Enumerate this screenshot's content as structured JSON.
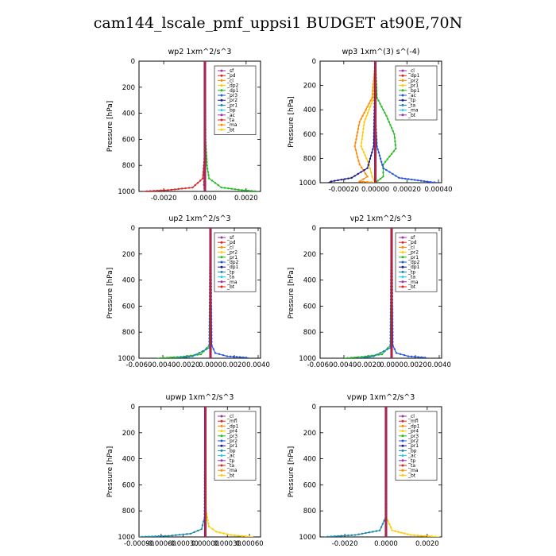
{
  "page_title": "cam144_lscale_pmf_uppsi1  BUDGET at90E,70N",
  "ylabel": "Pressure [hPa]",
  "colors": {
    "purple": "#9933aa",
    "red": "#dd2222",
    "orange": "#ff8800",
    "yellow": "#ffcc00",
    "green": "#22bb22",
    "blue": "#2255dd",
    "navy": "#1a1a88",
    "cyan": "#22ccee",
    "teal": "#1a88aa"
  },
  "chart_data": [
    {
      "type": "line",
      "title": "wp2  1xm^2/s^3",
      "xlim": [
        -0.0032,
        0.0027
      ],
      "ylim": [
        0,
        1000
      ],
      "xticks": [
        -0.002,
        0.0,
        0.002
      ],
      "xtick_labels": [
        "-0.0020",
        "0.0000",
        "0.0020"
      ],
      "yticks": [
        0,
        200,
        400,
        600,
        800,
        1000
      ],
      "legend": [
        "_sf",
        "_pd",
        "_cl",
        "_dp2",
        "_dp1",
        "_pr3",
        "_pr2",
        "_pr1",
        "_bp",
        "_ac",
        "_ta",
        "_ma",
        "_bt"
      ],
      "series": [
        {
          "name": "_cl",
          "color": "red",
          "points": [
            [
              0,
              0
            ],
            [
              0,
              700
            ],
            [
              -0.0001,
              900
            ],
            [
              -0.0006,
              970
            ],
            [
              -0.0018,
              990
            ],
            [
              -0.003,
              1000
            ]
          ]
        },
        {
          "name": "_bp",
          "color": "green",
          "points": [
            [
              0,
              0
            ],
            [
              3e-05,
              600
            ],
            [
              0.0001,
              800
            ],
            [
              0.0002,
              900
            ],
            [
              0.0008,
              970
            ],
            [
              0.0018,
              990
            ],
            [
              0.0026,
              1000
            ]
          ]
        },
        {
          "name": "_pd",
          "color": "purple",
          "points": [
            [
              0,
              0
            ],
            [
              0,
              800
            ],
            [
              -5e-05,
              950
            ],
            [
              0,
              1000
            ]
          ]
        }
      ]
    },
    {
      "type": "line",
      "title": "wp3  1xm^(3) s^(-4)",
      "xlim": [
        -0.00035,
        0.00042
      ],
      "ylim": [
        0,
        1000
      ],
      "xticks": [
        -0.0002,
        0.0,
        0.0002,
        0.0004
      ],
      "xtick_labels": [
        "-0.00020",
        "0.00000",
        "0.00020",
        "0.00040"
      ],
      "yticks": [
        0,
        200,
        400,
        600,
        800,
        1000
      ],
      "legend": [
        "_cl",
        "_dp1",
        "_pr2",
        "_pr1",
        "_bp1",
        "_ac",
        "_tp",
        "_ta",
        "_ma",
        "_bt"
      ],
      "series": [
        {
          "name": "_pr1",
          "color": "orange",
          "points": [
            [
              0,
              0
            ],
            [
              -2e-05,
              300
            ],
            [
              -0.0001,
              500
            ],
            [
              -0.00013,
              700
            ],
            [
              -0.0001,
              850
            ],
            [
              -5e-05,
              950
            ],
            [
              -0.0001,
              990
            ],
            [
              0,
              1000
            ]
          ]
        },
        {
          "name": "_pr2",
          "color": "yellow",
          "points": [
            [
              0,
              0
            ],
            [
              -1e-05,
              300
            ],
            [
              -7e-05,
              500
            ],
            [
              -9e-05,
              700
            ],
            [
              -4e-05,
              850
            ],
            [
              -2e-05,
              950
            ],
            [
              0,
              1000
            ]
          ]
        },
        {
          "name": "_bp1",
          "color": "green",
          "points": [
            [
              0,
              0
            ],
            [
              1e-05,
              300
            ],
            [
              7e-05,
              450
            ],
            [
              0.00012,
              600
            ],
            [
              0.00013,
              720
            ],
            [
              5e-05,
              850
            ],
            [
              5e-05,
              950
            ],
            [
              0,
              1000
            ]
          ]
        },
        {
          "name": "_tp",
          "color": "blue",
          "points": [
            [
              0,
              0
            ],
            [
              0,
              450
            ],
            [
              1e-05,
              700
            ],
            [
              5e-05,
              880
            ],
            [
              0.00015,
              960
            ],
            [
              0.00035,
              995
            ],
            [
              0.0004,
              1000
            ]
          ]
        },
        {
          "name": "_ta",
          "color": "navy",
          "points": [
            [
              0,
              0
            ],
            [
              -1e-05,
              700
            ],
            [
              -5e-05,
              880
            ],
            [
              -0.00015,
              960
            ],
            [
              -0.00028,
              990
            ],
            [
              -0.0003,
              1000
            ]
          ]
        },
        {
          "name": "_dp1",
          "color": "red",
          "points": [
            [
              0,
              0
            ],
            [
              0,
              1000
            ]
          ]
        },
        {
          "name": "_cl",
          "color": "purple",
          "points": [
            [
              0,
              0
            ],
            [
              0,
              1000
            ]
          ]
        }
      ]
    },
    {
      "type": "line",
      "title": "up2  1xm^2/s^3",
      "xlim": [
        -0.006,
        0.0042
      ],
      "ylim": [
        0,
        1000
      ],
      "xticks": [
        -0.006,
        -0.004,
        -0.002,
        0.0,
        0.002,
        0.004
      ],
      "xtick_labels": [
        "-0.0060",
        "-0.0040",
        "-0.0020",
        "0.0000",
        "0.0020",
        "0.0040"
      ],
      "yticks": [
        0,
        200,
        400,
        600,
        800,
        1000
      ],
      "legend": [
        "_sf",
        "_pd",
        "_cl",
        "_pr2",
        "_pr1",
        "_dp2",
        "_dp1",
        "_tp",
        "_ta",
        "_ma",
        "_bt"
      ],
      "series": [
        {
          "name": "_dp2",
          "color": "green",
          "points": [
            [
              0,
              0
            ],
            [
              -0.0001,
              900
            ],
            [
              -0.0008,
              970
            ],
            [
              -0.0025,
              990
            ],
            [
              -0.0045,
              1000
            ]
          ]
        },
        {
          "name": "_tp",
          "color": "blue",
          "points": [
            [
              0,
              0
            ],
            [
              0.0001,
              900
            ],
            [
              0.0004,
              960
            ],
            [
              0.0014,
              985
            ],
            [
              0.003,
              995
            ],
            [
              0.0033,
              1000
            ]
          ]
        },
        {
          "name": "_ta",
          "color": "teal",
          "points": [
            [
              0,
              0
            ],
            [
              -0.0001,
              920
            ],
            [
              -0.0015,
              985
            ],
            [
              -0.003,
              1000
            ]
          ]
        },
        {
          "name": "_cl",
          "color": "red",
          "points": [
            [
              0,
              0
            ],
            [
              0,
              1000
            ]
          ]
        }
      ]
    },
    {
      "type": "line",
      "title": "vp2  1xm^2/s^3",
      "xlim": [
        -0.006,
        0.0042
      ],
      "ylim": [
        0,
        1000
      ],
      "xticks": [
        -0.006,
        -0.004,
        -0.002,
        0.0,
        0.002,
        0.004
      ],
      "xtick_labels": [
        "-0.0060",
        "-0.0040",
        "-0.0020",
        "0.0000",
        "0.0020",
        "0.0040"
      ],
      "yticks": [
        0,
        200,
        400,
        600,
        800,
        1000
      ],
      "legend": [
        "_sf",
        "_pd",
        "_cl",
        "_pr2",
        "_pr1",
        "_dp2",
        "_dp1",
        "_tp",
        "_ta",
        "_ma",
        "_bt"
      ],
      "series": [
        {
          "name": "_dp2",
          "color": "green",
          "points": [
            [
              0,
              0
            ],
            [
              -0.0001,
              900
            ],
            [
              -0.0008,
              970
            ],
            [
              -0.0025,
              990
            ],
            [
              -0.004,
              1000
            ]
          ]
        },
        {
          "name": "_tp",
          "color": "blue",
          "points": [
            [
              0,
              0
            ],
            [
              0.0001,
              900
            ],
            [
              0.0004,
              960
            ],
            [
              0.0014,
              985
            ],
            [
              0.0028,
              995
            ],
            [
              0.003,
              1000
            ]
          ]
        },
        {
          "name": "_ta",
          "color": "teal",
          "points": [
            [
              0,
              0
            ],
            [
              -0.0001,
              920
            ],
            [
              -0.0015,
              985
            ],
            [
              -0.0028,
              1000
            ]
          ]
        },
        {
          "name": "_cl",
          "color": "red",
          "points": [
            [
              0,
              0
            ],
            [
              0,
              1000
            ]
          ]
        }
      ]
    },
    {
      "type": "line",
      "title": "upwp  1xm^2/s^3",
      "xlim": [
        -0.0009,
        0.00075
      ],
      "ylim": [
        0,
        1000
      ],
      "xticks": [
        -0.0009,
        -0.0006,
        -0.0003,
        0.0,
        0.0003,
        0.0006
      ],
      "xtick_labels": [
        "-0.00090",
        "-0.00060",
        "-0.00030",
        "0.00000",
        "0.00030",
        "0.00060"
      ],
      "yticks": [
        0,
        200,
        400,
        600,
        800,
        1000
      ],
      "legend": [
        "_cl",
        "_mfl",
        "_dp1",
        "_pr4",
        "_pr3",
        "_pr2",
        "_pr1",
        "_bp",
        "_ac",
        "_tp",
        "_ta",
        "_ma",
        "_bt"
      ],
      "series": [
        {
          "name": "_pr1",
          "color": "yellow",
          "points": [
            [
              0,
              0
            ],
            [
              1e-05,
              800
            ],
            [
              5e-05,
              920
            ],
            [
              0.00015,
              960
            ],
            [
              0.00035,
              985
            ],
            [
              0.0006,
              998
            ],
            [
              0.00065,
              1000
            ]
          ]
        },
        {
          "name": "_ta",
          "color": "teal",
          "points": [
            [
              0,
              0
            ],
            [
              -1e-05,
              850
            ],
            [
              -5e-05,
              940
            ],
            [
              -0.0002,
              975
            ],
            [
              -0.0005,
              992
            ],
            [
              -0.0009,
              1000
            ]
          ]
        },
        {
          "name": "_dp1",
          "color": "red",
          "points": [
            [
              0,
              0
            ],
            [
              0,
              1000
            ]
          ]
        },
        {
          "name": "_cl",
          "color": "purple",
          "points": [
            [
              0,
              0
            ],
            [
              0,
              1000
            ]
          ]
        }
      ]
    },
    {
      "type": "line",
      "title": "vpwp  1xm^2/s^3",
      "xlim": [
        -0.0032,
        0.0027
      ],
      "ylim": [
        0,
        1000
      ],
      "xticks": [
        -0.002,
        0.0,
        0.002
      ],
      "xtick_labels": [
        "-0.0020",
        "0.0000",
        "0.0020"
      ],
      "yticks": [
        0,
        200,
        400,
        600,
        800,
        1000
      ],
      "legend": [
        "_cl",
        "_mfl",
        "_dp1",
        "_pr4",
        "_pr3",
        "_pr2",
        "_pr1",
        "_bp",
        "_ac",
        "_tp",
        "_ta",
        "_ma",
        "_bt"
      ],
      "series": [
        {
          "name": "_pr1",
          "color": "yellow",
          "points": [
            [
              0,
              0
            ],
            [
              2e-05,
              850
            ],
            [
              0.0003,
              950
            ],
            [
              0.0012,
              985
            ],
            [
              0.0024,
              998
            ],
            [
              0.0026,
              1000
            ]
          ]
        },
        {
          "name": "_ta",
          "color": "teal",
          "points": [
            [
              0,
              0
            ],
            [
              -2e-05,
              850
            ],
            [
              -0.0003,
              950
            ],
            [
              -0.0015,
              985
            ],
            [
              -0.003,
              1000
            ]
          ]
        },
        {
          "name": "_dp1",
          "color": "red",
          "points": [
            [
              0,
              0
            ],
            [
              0,
              1000
            ]
          ]
        },
        {
          "name": "_cl",
          "color": "purple",
          "points": [
            [
              0,
              0
            ],
            [
              0,
              1000
            ]
          ]
        }
      ]
    }
  ]
}
